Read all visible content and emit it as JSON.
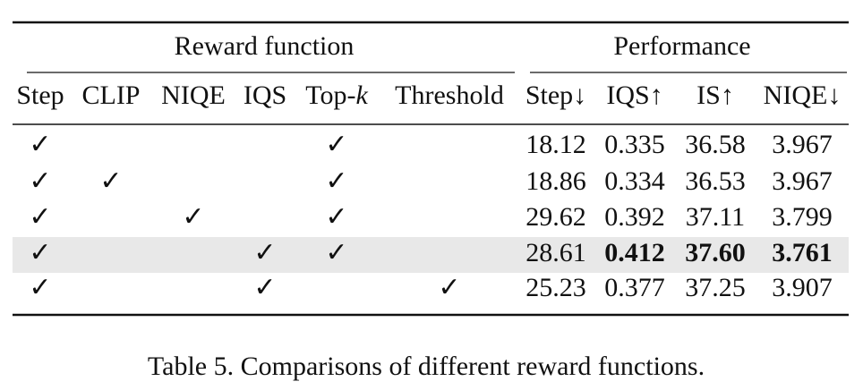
{
  "table": {
    "groups": [
      "Reward function",
      "Performance"
    ],
    "header": [
      "Step",
      "CLIP",
      "NIQE",
      "IQS",
      [
        "Top-",
        "k"
      ],
      "Threshold",
      "Step↓",
      "IQS↑",
      "IS↑",
      "NIQE↓"
    ],
    "rows": [
      {
        "cells": [
          "✓",
          null,
          null,
          null,
          "✓",
          null,
          "18.12",
          "0.335",
          "36.58",
          "3.967"
        ]
      },
      {
        "cells": [
          "✓",
          "✓",
          null,
          null,
          "✓",
          null,
          "18.86",
          "0.334",
          "36.53",
          "3.967"
        ]
      },
      {
        "cells": [
          "✓",
          null,
          "✓",
          null,
          "✓",
          null,
          "29.62",
          "0.392",
          "37.11",
          "3.799"
        ]
      },
      {
        "cells": [
          "✓",
          null,
          null,
          "✓",
          "✓",
          null,
          "28.61",
          "0.412",
          "37.60",
          "3.761"
        ],
        "highlight": true,
        "bold": [
          7,
          8,
          9
        ]
      },
      {
        "cells": [
          "✓",
          null,
          null,
          "✓",
          null,
          "✓",
          "25.23",
          "0.377",
          "37.25",
          "3.907"
        ]
      }
    ]
  },
  "caption": "Table 5. Comparisons of different reward functions."
}
